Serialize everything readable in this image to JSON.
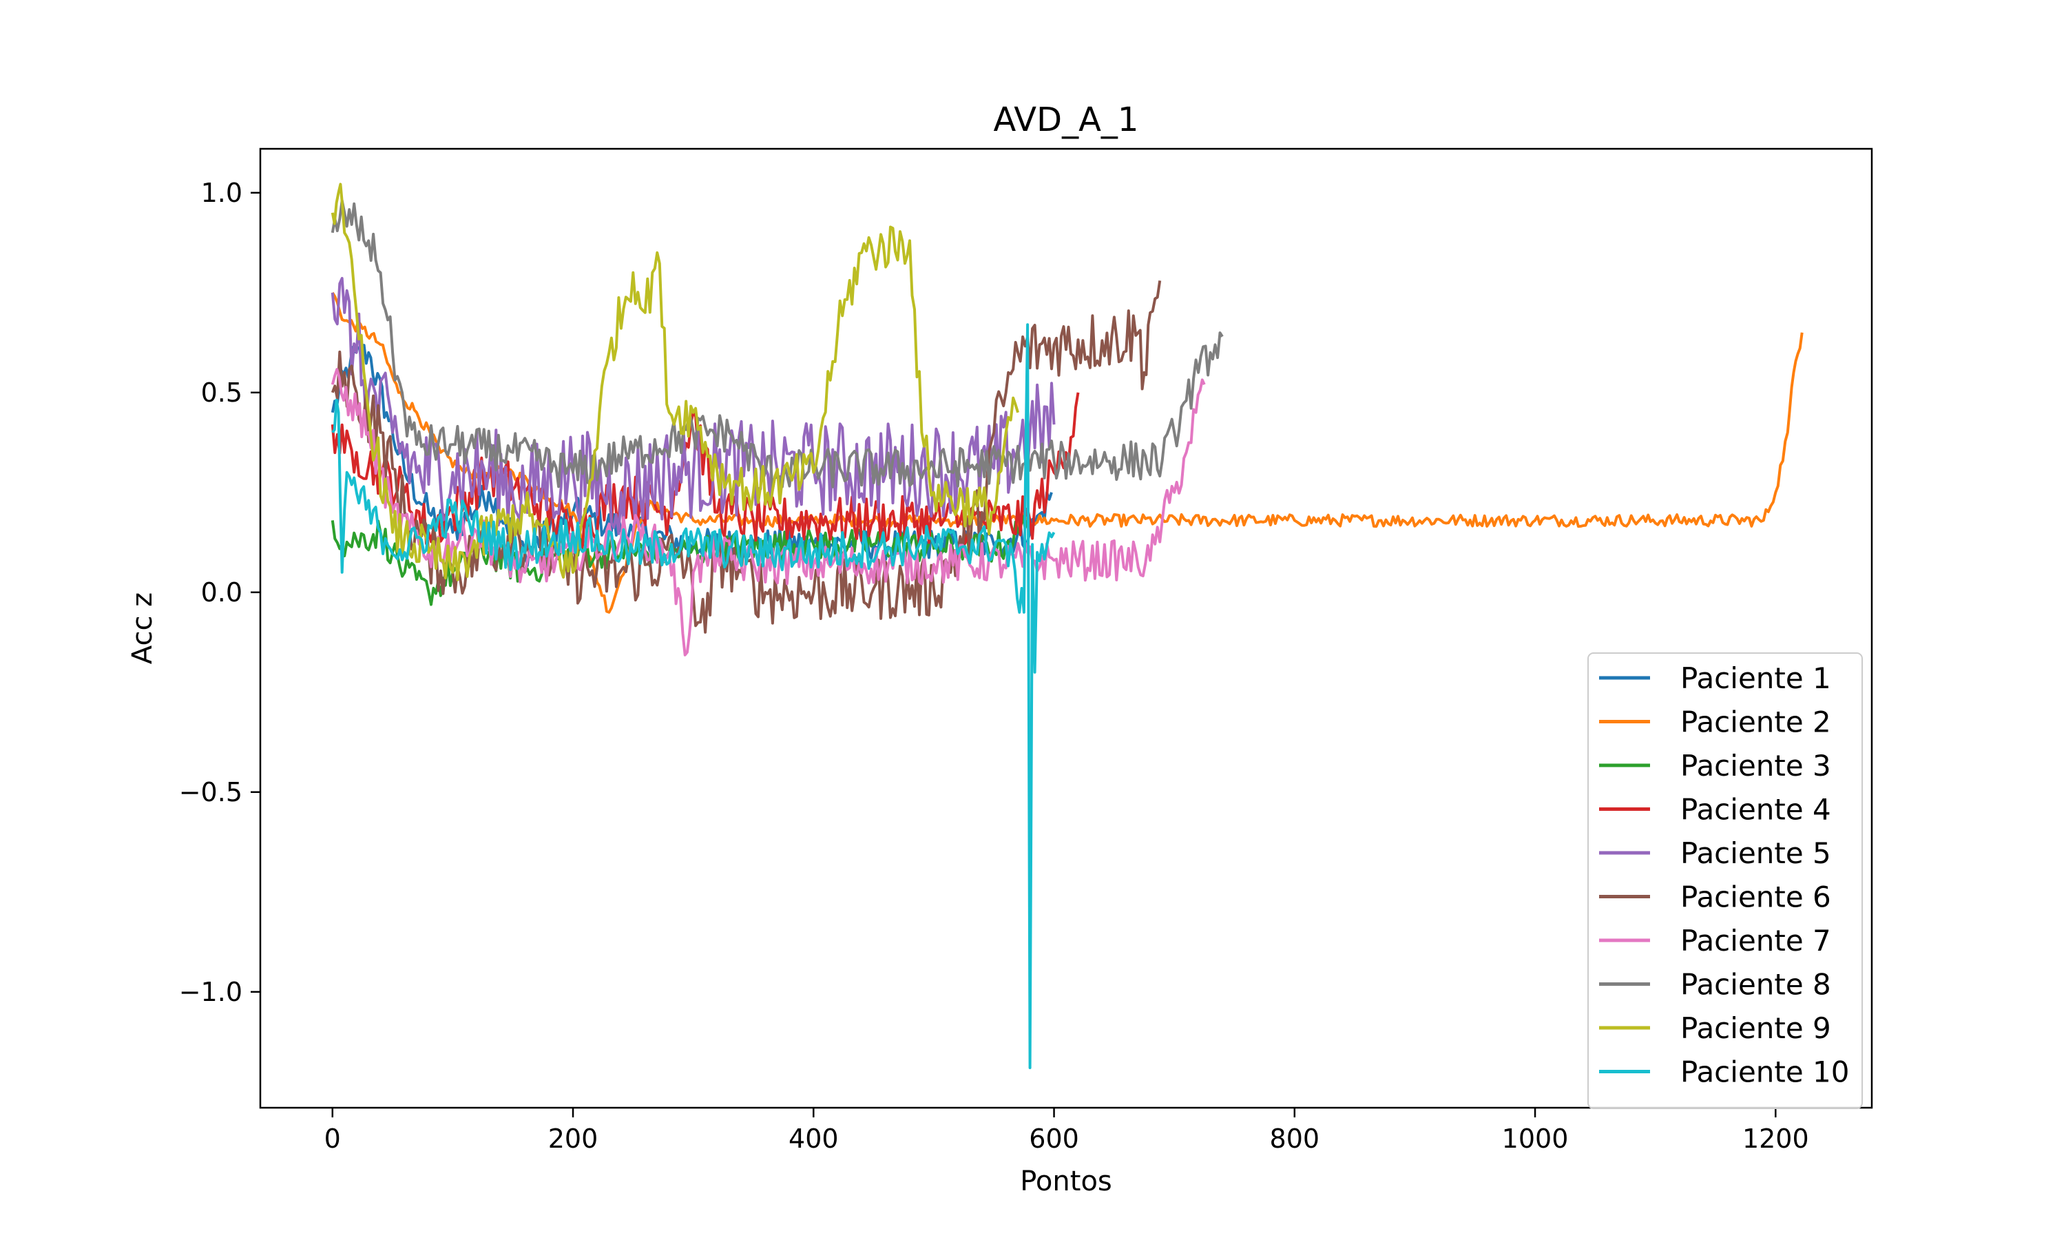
{
  "chart_data": {
    "type": "line",
    "title": "AVD_A_1",
    "xlabel": "Pontos",
    "ylabel": "Acc z",
    "xlim": [
      -60,
      1280
    ],
    "ylim": [
      -1.29,
      1.11
    ],
    "xticks": [
      0,
      200,
      400,
      600,
      800,
      1000,
      1200
    ],
    "xtick_labels": [
      "0",
      "200",
      "400",
      "600",
      "800",
      "1000",
      "1200"
    ],
    "yticks": [
      1.0,
      0.5,
      0.0,
      -0.5,
      -1.0
    ],
    "ytick_labels": [
      "1.0",
      "0.5",
      "0.0",
      "−0.5",
      "−1.0"
    ],
    "grid": false,
    "legend_position": "lower-right",
    "series": [
      {
        "name": "Paciente 1",
        "color": "#1f77b4",
        "noise": 0.04,
        "x": [
          0,
          15,
          30,
          45,
          60,
          80,
          100,
          130,
          160,
          200,
          250,
          300,
          350,
          400,
          450,
          500,
          550,
          580,
          590,
          598
        ],
        "y": [
          0.45,
          0.58,
          0.6,
          0.45,
          0.3,
          0.2,
          0.15,
          0.25,
          0.1,
          0.2,
          0.15,
          0.12,
          0.12,
          0.12,
          0.12,
          0.12,
          0.12,
          0.15,
          0.2,
          0.25
        ]
      },
      {
        "name": "Paciente 2",
        "color": "#ff7f0e",
        "noise": 0.015,
        "x": [
          0,
          10,
          25,
          40,
          55,
          70,
          90,
          110,
          150,
          200,
          230,
          260,
          300,
          350,
          400,
          500,
          600,
          800,
          1000,
          1190,
          1200,
          1210,
          1215,
          1222
        ],
        "y": [
          0.75,
          0.68,
          0.66,
          0.62,
          0.5,
          0.45,
          0.35,
          0.3,
          0.3,
          0.2,
          -0.05,
          0.22,
          0.18,
          0.18,
          0.18,
          0.18,
          0.18,
          0.18,
          0.18,
          0.18,
          0.25,
          0.4,
          0.55,
          0.65
        ]
      },
      {
        "name": "Paciente 3",
        "color": "#2ca02c",
        "noise": 0.04,
        "x": [
          0,
          8,
          20,
          40,
          50,
          60,
          80,
          100,
          130,
          160,
          200,
          240,
          280,
          320,
          400,
          450,
          500,
          550,
          560,
          570,
          578
        ],
        "y": [
          0.18,
          0.12,
          0.13,
          0.15,
          0.1,
          0.05,
          0.0,
          0.05,
          0.1,
          0.05,
          0.1,
          0.1,
          0.1,
          0.11,
          0.12,
          0.12,
          0.11,
          0.11,
          0.12,
          0.15,
          0.18
        ]
      },
      {
        "name": "Paciente 4",
        "color": "#d62728",
        "noise": 0.06,
        "x": [
          0,
          10,
          20,
          40,
          60,
          80,
          100,
          130,
          160,
          200,
          240,
          280,
          300,
          320,
          350,
          400,
          450,
          500,
          550,
          580,
          600,
          610,
          620
        ],
        "y": [
          0.42,
          0.35,
          0.35,
          0.3,
          0.25,
          0.15,
          0.2,
          0.3,
          0.25,
          0.15,
          0.25,
          0.2,
          0.45,
          0.2,
          0.18,
          0.18,
          0.18,
          0.18,
          0.18,
          0.18,
          0.3,
          0.35,
          0.5
        ]
      },
      {
        "name": "Paciente 5",
        "color": "#9467bd",
        "noise": 0.12,
        "x": [
          0,
          10,
          20,
          30,
          50,
          70,
          100,
          130,
          160,
          200,
          240,
          280,
          320,
          360,
          400,
          450,
          500,
          550,
          580,
          600
        ],
        "y": [
          0.75,
          0.7,
          0.6,
          0.5,
          0.4,
          0.3,
          0.3,
          0.3,
          0.25,
          0.3,
          0.25,
          0.3,
          0.31,
          0.31,
          0.31,
          0.31,
          0.31,
          0.31,
          0.4,
          0.42
        ]
      },
      {
        "name": "Paciente 6",
        "color": "#8c564b",
        "noise": 0.08,
        "x": [
          0,
          10,
          20,
          40,
          60,
          80,
          100,
          150,
          200,
          250,
          290,
          310,
          320,
          340,
          360,
          400,
          450,
          500,
          540,
          550,
          560,
          570,
          600,
          640,
          670,
          675,
          680,
          688
        ],
        "y": [
          0.5,
          0.55,
          0.5,
          0.4,
          0.2,
          0.1,
          0.05,
          0.15,
          0.05,
          0.05,
          0.1,
          -0.1,
          0.1,
          0.05,
          0.0,
          0.0,
          0.01,
          0.01,
          0.2,
          0.4,
          0.5,
          0.6,
          0.62,
          0.63,
          0.65,
          0.55,
          0.7,
          0.78
        ]
      },
      {
        "name": "Paciente 7",
        "color": "#e377c2",
        "noise": 0.05,
        "x": [
          0,
          15,
          30,
          50,
          80,
          120,
          160,
          200,
          250,
          280,
          295,
          300,
          320,
          340,
          400,
          500,
          600,
          680,
          690,
          700,
          710,
          718,
          725
        ],
        "y": [
          0.52,
          0.48,
          0.4,
          0.2,
          0.1,
          0.15,
          0.05,
          0.1,
          0.15,
          0.1,
          -0.15,
          0.05,
          0.1,
          0.07,
          0.07,
          0.07,
          0.08,
          0.08,
          0.18,
          0.25,
          0.35,
          0.45,
          0.52
        ]
      },
      {
        "name": "Paciente 8",
        "color": "#7f7f7f",
        "noise": 0.05,
        "x": [
          0,
          10,
          20,
          30,
          40,
          50,
          60,
          70,
          100,
          150,
          200,
          250,
          300,
          330,
          360,
          400,
          500,
          600,
          690,
          700,
          710,
          720,
          730,
          740
        ],
        "y": [
          0.9,
          0.95,
          0.92,
          0.88,
          0.8,
          0.6,
          0.45,
          0.37,
          0.37,
          0.35,
          0.3,
          0.35,
          0.4,
          0.4,
          0.3,
          0.31,
          0.31,
          0.33,
          0.33,
          0.4,
          0.48,
          0.55,
          0.6,
          0.64
        ]
      },
      {
        "name": "Paciente 9",
        "color": "#bcbd22",
        "noise": 0.06,
        "x": [
          0,
          5,
          10,
          20,
          30,
          50,
          80,
          100,
          130,
          160,
          200,
          210,
          230,
          250,
          260,
          270,
          280,
          300,
          320,
          350,
          400,
          420,
          440,
          480,
          490,
          500,
          550,
          560,
          570
        ],
        "y": [
          0.95,
          1.0,
          0.9,
          0.7,
          0.45,
          0.15,
          0.1,
          0.05,
          0.15,
          0.2,
          0.05,
          0.2,
          0.6,
          0.8,
          0.7,
          0.85,
          0.45,
          0.45,
          0.3,
          0.25,
          0.3,
          0.65,
          0.85,
          0.88,
          0.4,
          0.25,
          0.2,
          0.4,
          0.45
        ]
      },
      {
        "name": "Paciente 10",
        "color": "#17becf",
        "noise": 0.05,
        "x": [
          0,
          5,
          8,
          12,
          20,
          40,
          60,
          100,
          150,
          200,
          250,
          300,
          350,
          400,
          500,
          560,
          575,
          578,
          580,
          582,
          584,
          586,
          590,
          600
        ],
        "y": [
          0.4,
          0.45,
          0.05,
          0.3,
          0.25,
          0.15,
          0.1,
          0.2,
          0.1,
          0.15,
          0.1,
          0.12,
          0.1,
          0.1,
          0.12,
          0.12,
          -0.05,
          0.67,
          -1.19,
          0.12,
          -0.2,
          0.1,
          0.12,
          0.15
        ]
      }
    ]
  }
}
